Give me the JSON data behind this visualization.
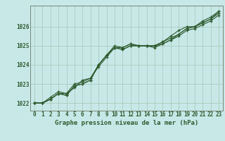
{
  "title": "Graphe pression niveau de la mer (hPa)",
  "bg_color": "#c8e8e8",
  "grid_color": "#aaccbb",
  "line_color": "#2d5a2d",
  "marker_color": "#2d5a2d",
  "xlim": [
    -0.5,
    23.5
  ],
  "ylim": [
    1021.6,
    1027.1
  ],
  "yticks": [
    1022,
    1023,
    1024,
    1025,
    1026
  ],
  "xticks": [
    0,
    1,
    2,
    3,
    4,
    5,
    6,
    7,
    8,
    9,
    10,
    11,
    12,
    13,
    14,
    15,
    16,
    17,
    18,
    19,
    20,
    21,
    22,
    23
  ],
  "series": [
    [
      1022.0,
      1022.0,
      1022.2,
      1022.5,
      1022.5,
      1022.8,
      1023.2,
      1023.3,
      1023.9,
      1024.4,
      1024.9,
      1024.9,
      1025.1,
      1025.0,
      1025.0,
      1025.0,
      1025.2,
      1025.5,
      1025.8,
      1026.0,
      1026.0,
      1026.3,
      1026.5,
      1026.8
    ],
    [
      1022.0,
      1022.0,
      1022.2,
      1022.5,
      1022.4,
      1022.9,
      1023.0,
      1023.2,
      1024.0,
      1024.5,
      1024.9,
      1024.8,
      1025.0,
      1025.0,
      1025.0,
      1025.0,
      1025.1,
      1025.3,
      1025.6,
      1025.9,
      1026.0,
      1026.2,
      1026.4,
      1026.7
    ],
    [
      1022.0,
      1022.0,
      1022.2,
      1022.5,
      1022.4,
      1022.9,
      1023.0,
      1023.2,
      1024.0,
      1024.5,
      1024.9,
      1024.8,
      1025.0,
      1025.0,
      1025.0,
      1024.9,
      1025.1,
      1025.3,
      1025.5,
      1025.8,
      1025.9,
      1026.1,
      1026.3,
      1026.6
    ],
    [
      1022.0,
      1022.0,
      1022.3,
      1022.6,
      1022.5,
      1023.0,
      1023.1,
      1023.3,
      1024.0,
      1024.5,
      1025.0,
      1024.9,
      1025.1,
      1025.0,
      1025.0,
      1025.0,
      1025.2,
      1025.4,
      1025.6,
      1025.9,
      1026.0,
      1026.2,
      1026.4,
      1026.8
    ]
  ]
}
